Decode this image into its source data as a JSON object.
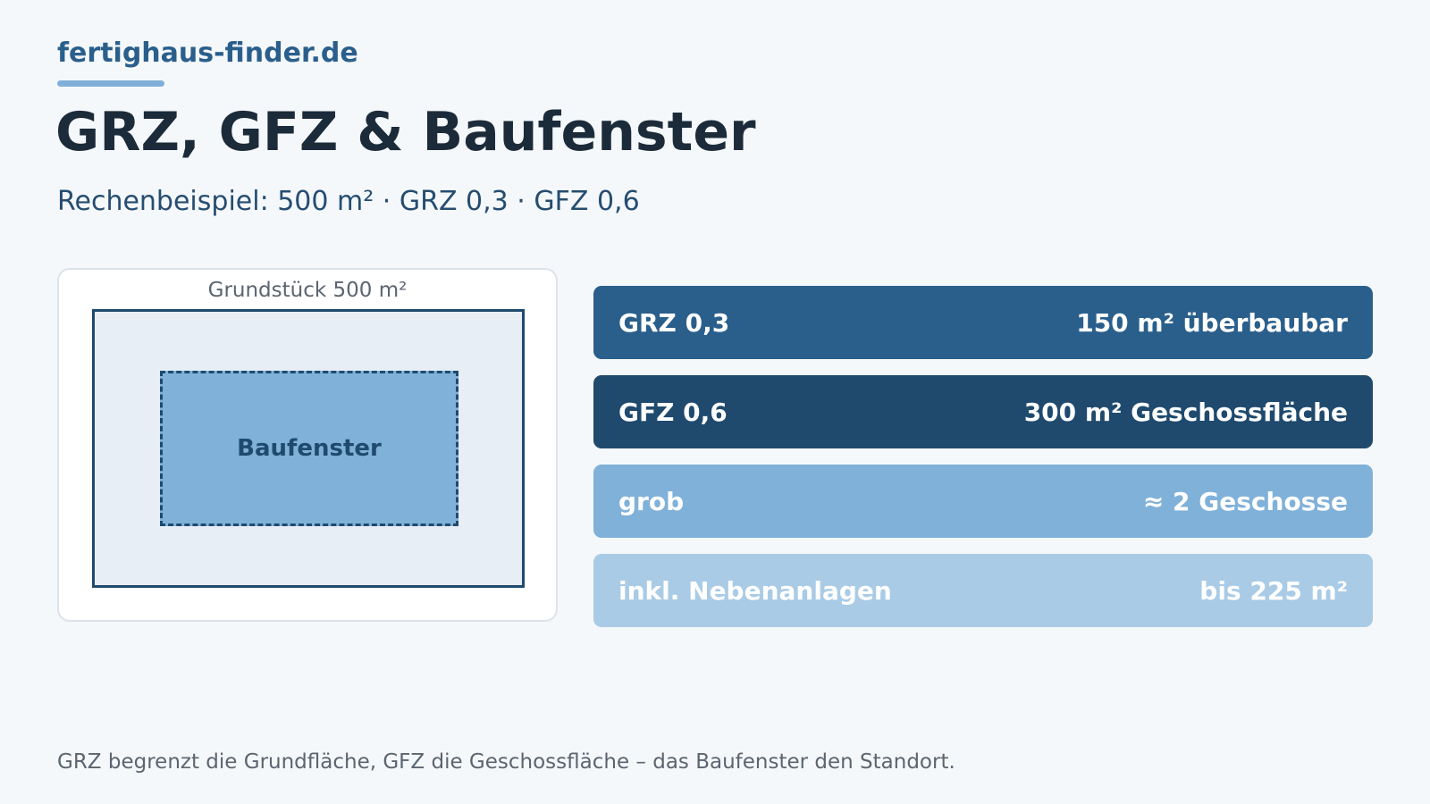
{
  "brand": {
    "name": "fertighaus-finder.de",
    "accent_color": "#7fb0d9"
  },
  "title": "GRZ, GFZ & Baufenster",
  "subtitle": "Rechenbeispiel: 500 m² · GRZ 0,3 · GFZ 0,6",
  "diagram": {
    "plot_label": "Grundstück 500 m²",
    "build_window_label": "Baufenster",
    "plot_fill": "#e7eef5",
    "build_window_fill": "#80b1d9",
    "outline_color": "#1f4a6e"
  },
  "metrics": [
    {
      "label": "GRZ 0,3",
      "value": "150 m² überbaubar",
      "color": "#2a5f8c"
    },
    {
      "label": "GFZ 0,6",
      "value": "300 m² Geschossfläche",
      "color": "#1f4a6e"
    },
    {
      "label": "grob",
      "value": "≈ 2 Geschosse",
      "color": "#80b1d9"
    },
    {
      "label": "inkl. Nebenanlagen",
      "value": "bis 225 m²",
      "color": "#a9cbe6"
    }
  ],
  "footer": "GRZ begrenzt die Grundfläche, GFZ die Geschossfläche – das Baufenster den Standort."
}
